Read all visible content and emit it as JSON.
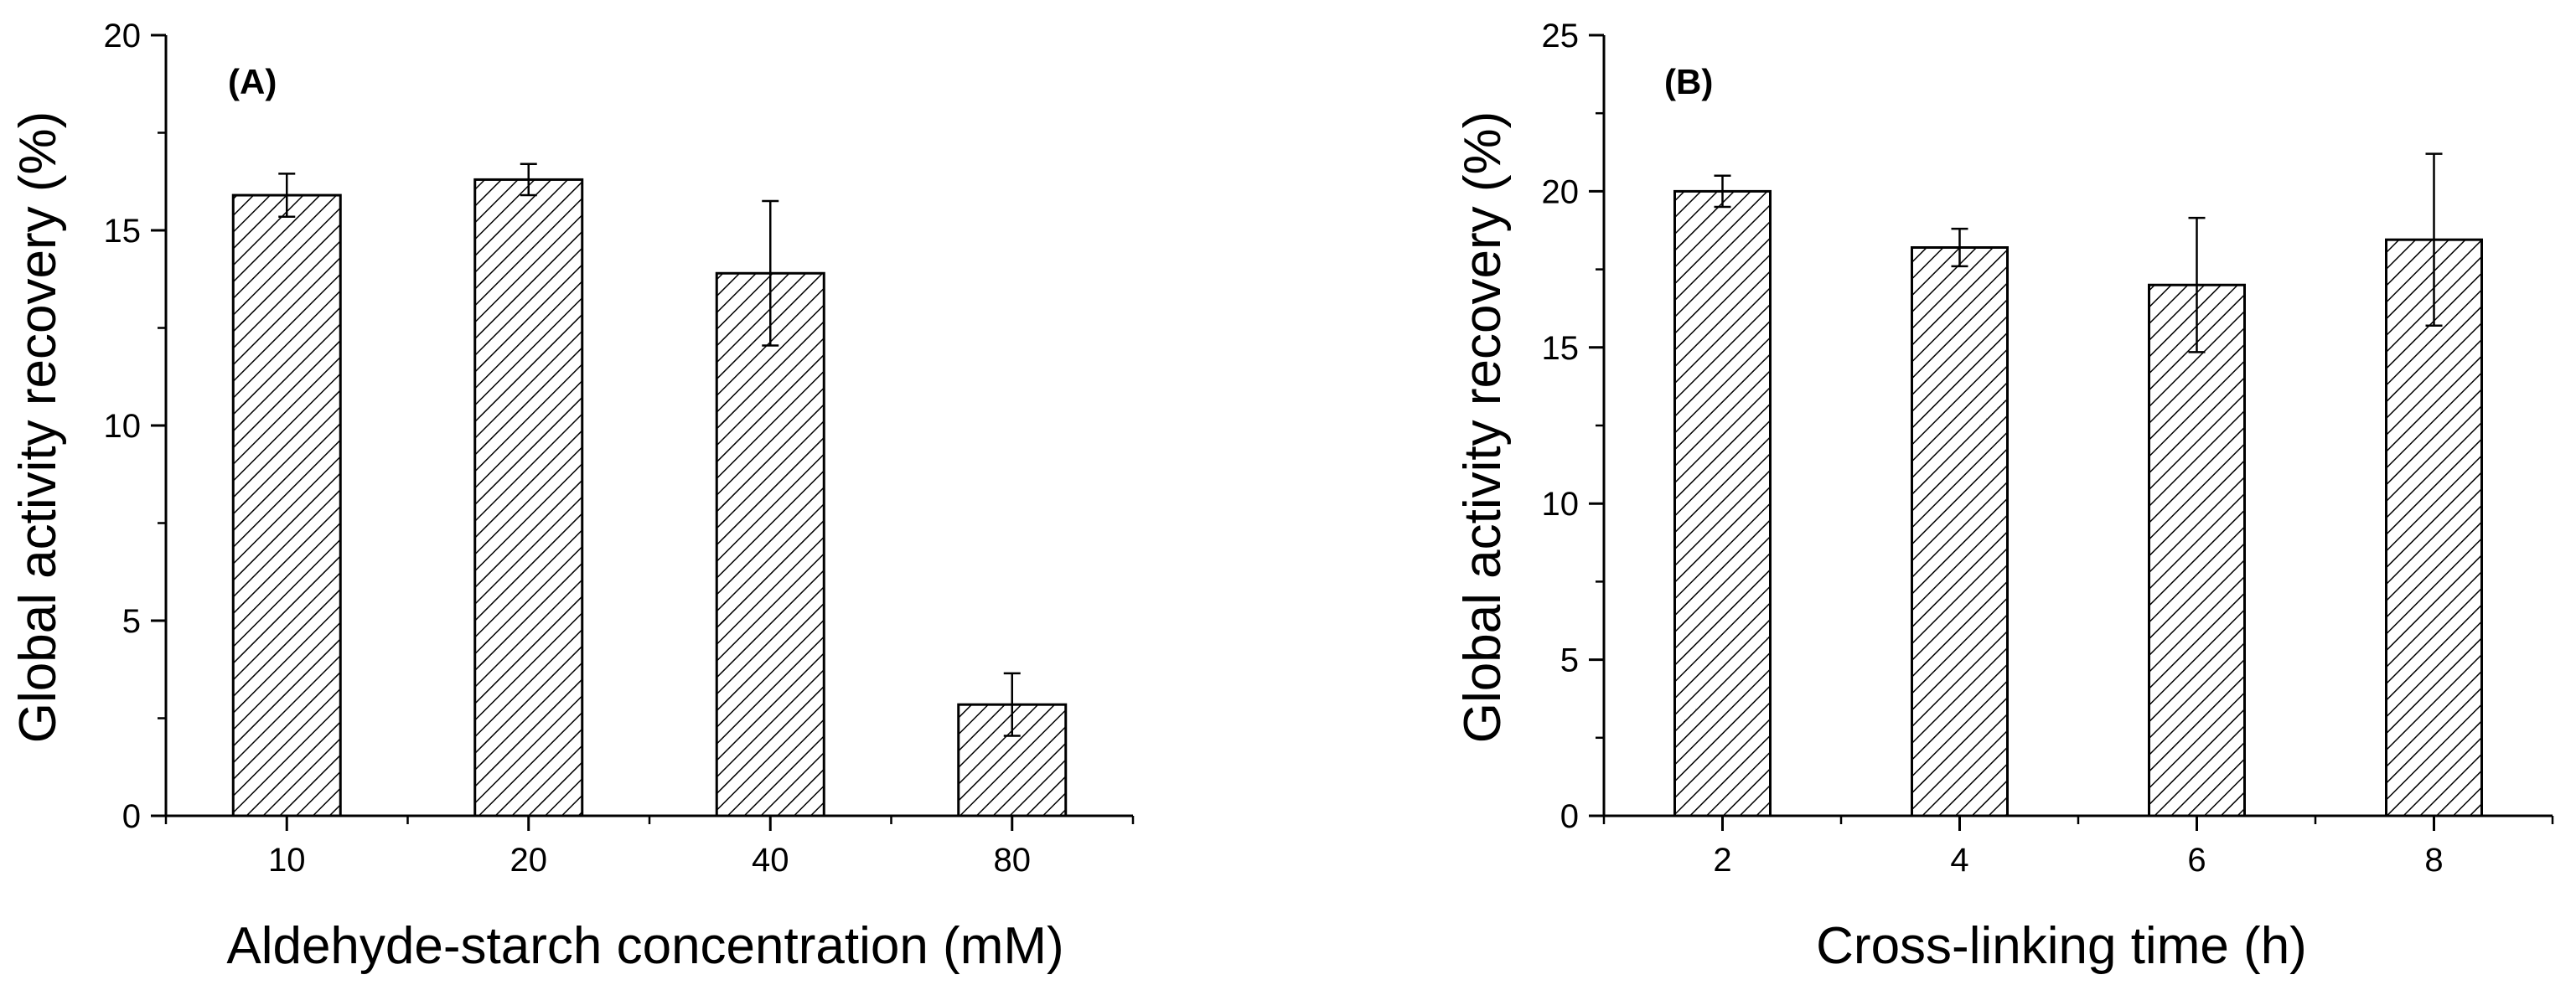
{
  "chart_data": [
    {
      "type": "bar",
      "panel_label": "(A)",
      "categories": [
        "10",
        "20",
        "40",
        "80"
      ],
      "values": [
        15.9,
        16.3,
        13.9,
        2.85
      ],
      "errors": [
        0.55,
        0.4,
        1.85,
        0.8
      ],
      "xlabel": "Aldehyde-starch concentration (mM)",
      "ylabel": "Global activity recovery (%)",
      "ylim": [
        0,
        20
      ],
      "yticks": [
        "0",
        "5",
        "10",
        "15",
        "20"
      ],
      "bar_pattern": "diagonal-hatch"
    },
    {
      "type": "bar",
      "panel_label": "(B)",
      "categories": [
        "2",
        "4",
        "6",
        "8"
      ],
      "values": [
        20.0,
        18.2,
        17.0,
        18.45
      ],
      "errors": [
        0.5,
        0.6,
        2.15,
        2.75
      ],
      "xlabel": "Cross-linking time (h)",
      "ylabel": "Global activity recovery (%)",
      "ylim": [
        0,
        25
      ],
      "yticks": [
        "0",
        "5",
        "10",
        "15",
        "20",
        "25"
      ],
      "bar_pattern": "diagonal-hatch"
    }
  ]
}
